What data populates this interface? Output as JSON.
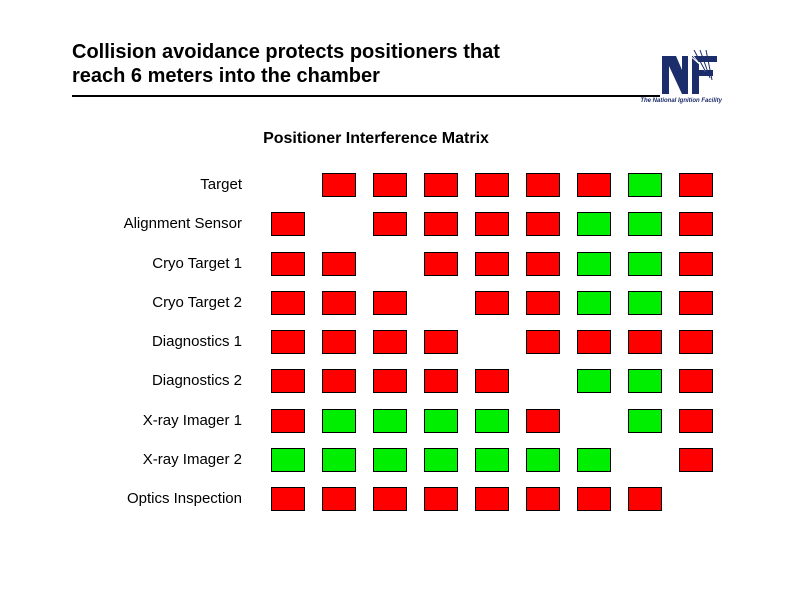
{
  "slide": {
    "title_line1": "Collision avoidance protects positioners that",
    "title_line2": "reach 6 meters into the chamber"
  },
  "logo": {
    "caption": "The National Ignition Facility",
    "colors": {
      "navy": "#1c2d6b"
    }
  },
  "matrix": {
    "title": "Positioner Interference Matrix",
    "colors": {
      "red": "#ff0000",
      "green": "#00ee00",
      "empty": "none"
    },
    "rows": [
      {
        "label": "Target",
        "cells": [
          "none",
          "red",
          "red",
          "red",
          "red",
          "red",
          "red",
          "green",
          "red"
        ]
      },
      {
        "label": "Alignment Sensor",
        "cells": [
          "red",
          "none",
          "red",
          "red",
          "red",
          "red",
          "green",
          "green",
          "red"
        ]
      },
      {
        "label": "Cryo Target 1",
        "cells": [
          "red",
          "red",
          "none",
          "red",
          "red",
          "red",
          "green",
          "green",
          "red"
        ]
      },
      {
        "label": "Cryo Target 2",
        "cells": [
          "red",
          "red",
          "red",
          "none",
          "red",
          "red",
          "green",
          "green",
          "red"
        ]
      },
      {
        "label": "Diagnostics 1",
        "cells": [
          "red",
          "red",
          "red",
          "red",
          "none",
          "red",
          "red",
          "red",
          "red"
        ]
      },
      {
        "label": "Diagnostics 2",
        "cells": [
          "red",
          "red",
          "red",
          "red",
          "red",
          "none",
          "green",
          "green",
          "red"
        ]
      },
      {
        "label": "X-ray Imager 1",
        "cells": [
          "red",
          "green",
          "green",
          "green",
          "green",
          "red",
          "none",
          "green",
          "red"
        ]
      },
      {
        "label": "X-ray Imager 2",
        "cells": [
          "green",
          "green",
          "green",
          "green",
          "green",
          "green",
          "green",
          "none",
          "red"
        ]
      },
      {
        "label": "Optics Inspection",
        "cells": [
          "red",
          "red",
          "red",
          "red",
          "red",
          "red",
          "red",
          "red",
          "none"
        ]
      }
    ]
  }
}
